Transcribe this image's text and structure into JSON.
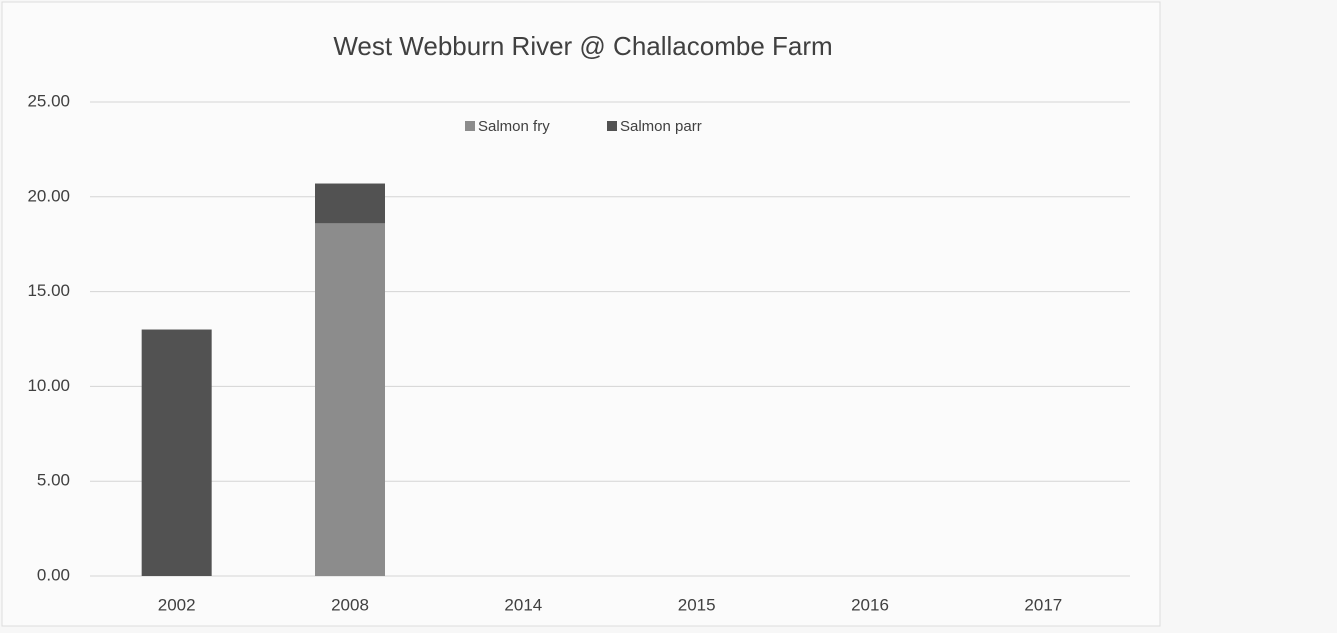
{
  "chart_data": {
    "type": "bar",
    "stacked": true,
    "title": "West Webburn River @ Challacombe Farm",
    "categories": [
      "2002",
      "2008",
      "2014",
      "2015",
      "2016",
      "2017"
    ],
    "series": [
      {
        "name": "Salmon fry",
        "color": "#8c8c8c",
        "values": [
          0,
          18.6,
          0,
          0,
          0,
          0
        ]
      },
      {
        "name": "Salmon parr",
        "color": "#525252",
        "values": [
          13.0,
          2.1,
          0,
          0,
          0,
          0
        ]
      }
    ],
    "ylim": [
      0,
      25
    ],
    "yticks": [
      {
        "value": 0,
        "label": "0.00"
      },
      {
        "value": 5,
        "label": "5.00"
      },
      {
        "value": 10,
        "label": "10.00"
      },
      {
        "value": 15,
        "label": "15.00"
      },
      {
        "value": 20,
        "label": "20.00"
      },
      {
        "value": 25,
        "label": "25.00"
      }
    ],
    "grid": true,
    "legend": "top"
  }
}
